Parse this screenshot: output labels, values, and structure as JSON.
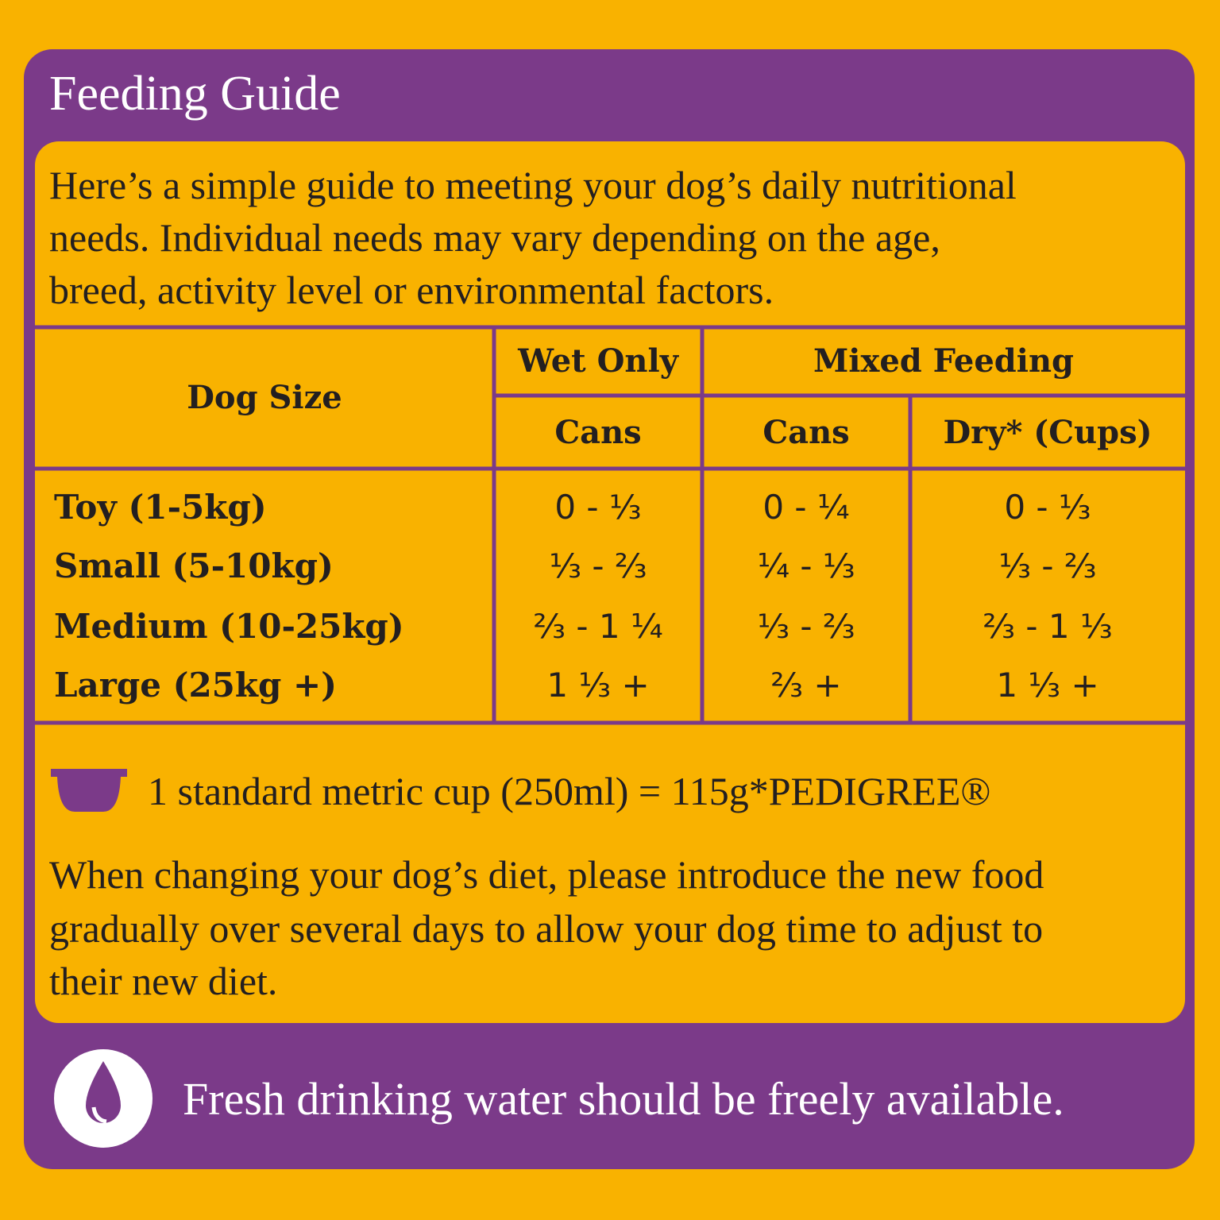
{
  "header": {
    "title": "Feeding Guide"
  },
  "intro": [
    "Here’s a simple guide to meeting your dog’s daily nutritional",
    "needs.  Individual needs may vary depending on the age,",
    "breed, activity level or environmental factors."
  ],
  "table": {
    "header": {
      "dog_size": "Dog Size",
      "wet_only": "Wet Only",
      "mixed_feeding": "Mixed Feeding",
      "columns": [
        "Cans",
        "Cans",
        "Dry* (Cups)"
      ]
    },
    "rows": [
      [
        "Toy (1-5kg)",
        "0 - ⅓",
        "0 - ¼",
        "0 - ⅓"
      ],
      [
        "Small (5-10kg)",
        "⅓ - ⅔",
        "¼ - ⅓",
        "⅓ - ⅔"
      ],
      [
        "Medium (10-25kg)",
        "⅔ - 1 ¼",
        "⅓ - ⅔",
        "⅔ - 1 ⅓"
      ],
      [
        "Large (25kg +)",
        "1 ⅓ +",
        "⅔ +",
        "1 ⅓ +"
      ]
    ]
  },
  "cup_note": "1 standard metric cup (250ml) = 115g*PEDIGREE®",
  "transition_note": [
    "When changing your dog’s diet, please introduce the new food",
    "gradually over several days to allow your dog time to adjust to",
    "their new diet."
  ],
  "water_note": "Fresh drinking water should be freely available."
}
